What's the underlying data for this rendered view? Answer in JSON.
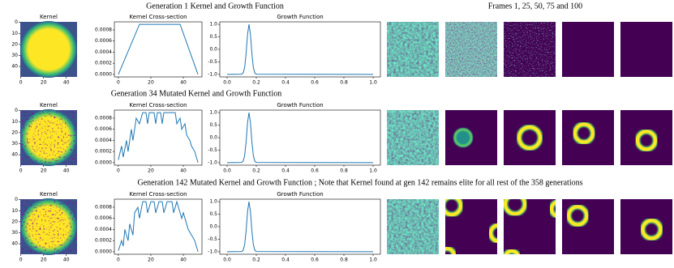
{
  "headings": [
    "Generation 1 Kernel and Growth Function",
    "Generation 34 Mutated Kernel and Growth Function",
    "Generation 142 Mutated Kernel and Growth Function ; Note that Kernel found at gen 142 remains elite for all rest of the 358 generations"
  ],
  "frames_title": "Frames 1, 25, 50, 75 and 100",
  "chart_data": [
    {
      "type": "heatmap",
      "title": "Kernel",
      "xlim": [
        -0.5,
        49.5
      ],
      "ylim": [
        49.5,
        -0.5
      ],
      "xticks": [
        0,
        20,
        40
      ],
      "yticks": [
        0,
        10,
        20,
        30,
        40
      ]
    },
    {
      "type": "line",
      "title": "Kernel Cross-section",
      "color": "#1f77b4",
      "x": [
        0,
        13,
        38,
        49
      ],
      "values": [
        0,
        0.0009,
        0.0009,
        0
      ],
      "xlim": [
        -2.45,
        51.45
      ],
      "ylim": [
        -4.5e-05,
        0.000945
      ],
      "xticks": [
        0,
        20,
        40
      ],
      "yticks": [
        {
          "value": 0,
          "label": "0.0000"
        },
        0.0002,
        0.0004,
        0.0006,
        0.0008
      ]
    },
    {
      "type": "line",
      "title": "Growth Function",
      "color": "#1f77b4",
      "x": [
        0,
        0.1,
        0.11,
        0.12,
        0.13,
        0.14,
        0.15,
        0.16,
        0.17,
        0.18,
        0.19,
        0.2,
        1
      ],
      "values": [
        -1,
        -0.99,
        -0.94,
        -0.73,
        -0.18,
        0.6,
        1,
        0.6,
        -0.18,
        -0.73,
        -0.94,
        -0.99,
        -1
      ],
      "xlim": [
        -0.05,
        1.05
      ],
      "ylim": [
        -1.1,
        1.1
      ],
      "xticks": [
        {
          "value": 0,
          "label": "0.0"
        },
        {
          "value": 0.2,
          "label": "0.2"
        },
        {
          "value": 0.4,
          "label": "0.4"
        },
        {
          "value": 0.6,
          "label": "0.6"
        },
        {
          "value": 0.8,
          "label": "0.8"
        },
        {
          "value": 1,
          "label": "1.0"
        }
      ],
      "yticks": [
        {
          "value": -1,
          "label": "-1.0"
        },
        -0.5,
        {
          "value": 0,
          "label": "0.0"
        },
        0.5,
        {
          "value": 1,
          "label": "1.0"
        }
      ]
    },
    {
      "type": "heatmap",
      "title": "Kernel",
      "xlim": [
        -0.5,
        49.5
      ],
      "ylim": [
        49.5,
        -0.5
      ],
      "xticks": [
        0,
        20,
        40
      ],
      "yticks": [
        0,
        10,
        20,
        30,
        40
      ]
    },
    {
      "type": "line",
      "title": "Kernel Cross-section",
      "color": "#1f77b4",
      "x": [
        0,
        2,
        3,
        5,
        6,
        8,
        9,
        11,
        13,
        15,
        17,
        18,
        19,
        22,
        23,
        24,
        26,
        27,
        28,
        35,
        36,
        38,
        39,
        41,
        42,
        44,
        45,
        47,
        49
      ],
      "values": [
        5e-05,
        0.0003,
        0.0001,
        0.0004,
        0.0002,
        0.0006,
        0.0004,
        0.0008,
        0.0007,
        0.0009,
        0.0009,
        0.0007,
        0.0009,
        0.0009,
        0.0007,
        0.0009,
        0.0009,
        0.0007,
        0.0009,
        0.0009,
        0.0007,
        0.0008,
        0.0006,
        0.0007,
        0.0005,
        0.0004,
        0.0003,
        0.0002,
        0
      ],
      "xlim": [
        -2.45,
        51.45
      ],
      "ylim": [
        -4.5e-05,
        0.000945
      ],
      "xticks": [
        0,
        20,
        40
      ],
      "yticks": [
        {
          "value": 0,
          "label": "0.0000"
        },
        0.0002,
        0.0004,
        0.0006,
        0.0008
      ]
    },
    {
      "type": "line",
      "title": "Growth Function",
      "color": "#1f77b4",
      "x": [
        0,
        0.1,
        0.11,
        0.12,
        0.13,
        0.14,
        0.15,
        0.16,
        0.17,
        0.18,
        0.19,
        0.2,
        1
      ],
      "values": [
        -1,
        -0.99,
        -0.94,
        -0.73,
        -0.18,
        0.6,
        1,
        0.6,
        -0.18,
        -0.73,
        -0.94,
        -0.99,
        -1
      ],
      "xlim": [
        -0.05,
        1.05
      ],
      "ylim": [
        -1.1,
        1.1
      ],
      "xticks": [
        {
          "value": 0,
          "label": "0.0"
        },
        {
          "value": 0.2,
          "label": "0.2"
        },
        {
          "value": 0.4,
          "label": "0.4"
        },
        {
          "value": 0.6,
          "label": "0.6"
        },
        {
          "value": 0.8,
          "label": "0.8"
        },
        {
          "value": 1,
          "label": "1.0"
        }
      ],
      "yticks": [
        {
          "value": -1,
          "label": "-1.0"
        },
        -0.5,
        {
          "value": 0,
          "label": "0.0"
        },
        0.5,
        {
          "value": 1,
          "label": "1.0"
        }
      ]
    },
    {
      "type": "heatmap",
      "title": "Kernel",
      "xlim": [
        -0.5,
        49.5
      ],
      "ylim": [
        49.5,
        -0.5
      ],
      "xticks": [
        0,
        20,
        40
      ],
      "yticks": [
        0,
        10,
        20,
        30,
        40
      ]
    },
    {
      "type": "line",
      "title": "Kernel Cross-section",
      "color": "#1f77b4",
      "x": [
        0,
        2,
        3,
        4,
        6,
        7,
        9,
        10,
        12,
        13,
        15,
        17,
        18,
        20,
        22,
        23,
        25,
        27,
        28,
        30,
        33,
        34,
        36,
        37,
        39,
        40,
        42,
        43,
        45,
        47,
        49
      ],
      "values": [
        2e-05,
        0.0002,
        0.0001,
        0.0004,
        0.0002,
        0.0005,
        0.0003,
        0.0007,
        0.0008,
        0.0006,
        0.0009,
        0.0009,
        0.0007,
        0.0009,
        0.0009,
        0.0007,
        0.0009,
        0.0009,
        0.0007,
        0.0009,
        0.0009,
        0.0007,
        0.0009,
        0.0008,
        0.0006,
        0.0007,
        0.0005,
        0.0004,
        0.0003,
        0.0002,
        0
      ],
      "xlim": [
        -2.45,
        51.45
      ],
      "ylim": [
        -4.5e-05,
        0.000945
      ],
      "xticks": [
        0,
        20,
        40
      ],
      "yticks": [
        {
          "value": 0,
          "label": "0.0000"
        },
        0.0002,
        0.0004,
        0.0006,
        0.0008
      ]
    },
    {
      "type": "line",
      "title": "Growth Function",
      "color": "#1f77b4",
      "x": [
        0,
        0.1,
        0.11,
        0.12,
        0.13,
        0.14,
        0.15,
        0.16,
        0.17,
        0.18,
        0.19,
        0.2,
        1
      ],
      "values": [
        -1,
        -0.99,
        -0.94,
        -0.73,
        -0.18,
        0.6,
        1,
        0.6,
        -0.18,
        -0.73,
        -0.94,
        -0.99,
        -1
      ],
      "xlim": [
        -0.05,
        1.05
      ],
      "ylim": [
        -1.1,
        1.1
      ],
      "xticks": [
        {
          "value": 0,
          "label": "0.0"
        },
        {
          "value": 0.2,
          "label": "0.2"
        },
        {
          "value": 0.4,
          "label": "0.4"
        },
        {
          "value": 0.6,
          "label": "0.6"
        },
        {
          "value": 0.8,
          "label": "0.8"
        },
        {
          "value": 1,
          "label": "1.0"
        }
      ],
      "yticks": [
        {
          "value": -1,
          "label": "-1.0"
        },
        -0.5,
        {
          "value": 0,
          "label": "0.0"
        },
        0.5,
        {
          "value": 1,
          "label": "1.0"
        }
      ]
    }
  ]
}
